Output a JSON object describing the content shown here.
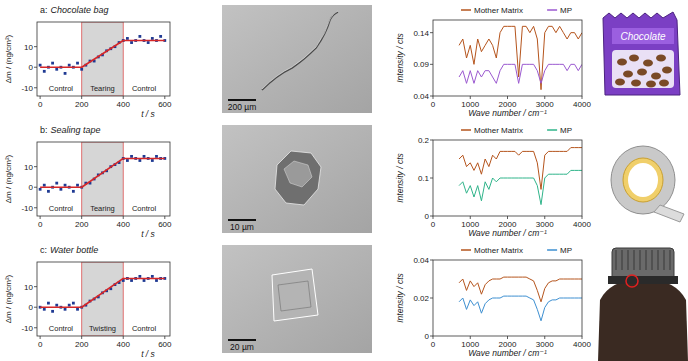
{
  "chart_data": [
    {
      "type": "scatter",
      "panel": "a:",
      "title": "Chocolate bag",
      "xlabel": "t / s",
      "ylabel": "Δm / (ng/cm²)",
      "x": [
        0,
        20,
        40,
        60,
        80,
        100,
        120,
        140,
        160,
        180,
        200,
        220,
        240,
        260,
        280,
        300,
        320,
        340,
        360,
        380,
        400,
        420,
        440,
        460,
        480,
        500,
        520,
        540,
        560,
        580,
        600
      ],
      "xlim": [
        -15,
        625
      ],
      "xticks": [
        0,
        200,
        400,
        600
      ],
      "ylim": [
        -14,
        22
      ],
      "yticks": [
        -10,
        0,
        10
      ],
      "series": [
        {
          "type": "scatter",
          "color": "#1f3a93",
          "marker": "square",
          "values": [
            1,
            -2,
            0,
            2,
            -1,
            0,
            -3,
            1,
            0,
            2,
            -1,
            1,
            3,
            3,
            5,
            6,
            8,
            9,
            10,
            12,
            13,
            14,
            12,
            13,
            15,
            13,
            12,
            14,
            13,
            15,
            13
          ]
        },
        {
          "type": "line",
          "color": "#d62728",
          "x": [
            0,
            200,
            400,
            600
          ],
          "values": [
            0,
            0,
            13,
            13
          ]
        }
      ],
      "highlight": [
        200,
        400
      ],
      "phases": [
        {
          "label": "Control",
          "start": 0,
          "end": 200
        },
        {
          "label": "Tearing",
          "start": 200,
          "end": 400
        },
        {
          "label": "Control",
          "start": 400,
          "end": 600
        }
      ]
    },
    {
      "type": "line",
      "xlabel": "Wave number / cm⁻¹",
      "ylabel": "Intensity / cts",
      "x": [
        700,
        800,
        900,
        1000,
        1100,
        1200,
        1300,
        1400,
        1500,
        1600,
        1700,
        1800,
        1900,
        2000,
        2100,
        2200,
        2300,
        2400,
        2500,
        2600,
        2700,
        2800,
        2900,
        3000,
        3100,
        3200,
        3300,
        3400,
        3500,
        3600,
        3700,
        3800,
        3900,
        4000
      ],
      "xlim": [
        0,
        4000
      ],
      "xticks": [
        0,
        1000,
        2000,
        3000,
        4000
      ],
      "ylim": [
        0.04,
        0.16
      ],
      "yticks": [
        0.04,
        0.09,
        0.14
      ],
      "legend": "top",
      "series": [
        {
          "name": "Mother Matrix",
          "color": "#b5541c",
          "values": [
            0.12,
            0.13,
            0.1,
            0.12,
            0.09,
            0.13,
            0.11,
            0.12,
            0.13,
            0.12,
            0.1,
            0.14,
            0.15,
            0.15,
            0.15,
            0.15,
            0.07,
            0.15,
            0.15,
            0.14,
            0.15,
            0.13,
            0.05,
            0.14,
            0.15,
            0.15,
            0.14,
            0.15,
            0.14,
            0.13,
            0.14,
            0.14,
            0.13,
            0.14
          ]
        },
        {
          "name": "MP",
          "color": "#9b59d0",
          "values": [
            0.07,
            0.08,
            0.06,
            0.08,
            0.06,
            0.08,
            0.07,
            0.08,
            0.08,
            0.07,
            0.06,
            0.08,
            0.09,
            0.09,
            0.09,
            0.09,
            0.06,
            0.09,
            0.09,
            0.09,
            0.09,
            0.08,
            0.06,
            0.08,
            0.09,
            0.09,
            0.09,
            0.09,
            0.09,
            0.08,
            0.09,
            0.09,
            0.08,
            0.09
          ]
        }
      ]
    },
    {
      "type": "scatter",
      "panel": "b:",
      "title": "Sealing tape",
      "xlabel": "t / s",
      "ylabel": "Δm / (ng/cm²)",
      "x": [
        0,
        20,
        40,
        60,
        80,
        100,
        120,
        140,
        160,
        180,
        200,
        220,
        240,
        260,
        280,
        300,
        320,
        340,
        360,
        380,
        400,
        420,
        440,
        460,
        480,
        500,
        520,
        540,
        560,
        580,
        600
      ],
      "xlim": [
        -15,
        625
      ],
      "xticks": [
        0,
        200,
        400,
        600
      ],
      "ylim": [
        -14,
        22
      ],
      "yticks": [
        -10,
        0,
        10
      ],
      "series": [
        {
          "type": "scatter",
          "color": "#1f3a93",
          "marker": "square",
          "values": [
            -1,
            1,
            -2,
            0,
            2,
            -1,
            1,
            0,
            -2,
            1,
            0,
            2,
            2,
            4,
            6,
            7,
            8,
            10,
            11,
            12,
            14,
            13,
            15,
            14,
            13,
            15,
            14,
            13,
            15,
            14,
            14
          ]
        },
        {
          "type": "line",
          "color": "#d62728",
          "x": [
            0,
            200,
            400,
            600
          ],
          "values": [
            0,
            0,
            14,
            14
          ]
        }
      ],
      "highlight": [
        200,
        400
      ],
      "phases": [
        {
          "label": "Control",
          "start": 0,
          "end": 200
        },
        {
          "label": "Tearing",
          "start": 200,
          "end": 400
        },
        {
          "label": "Control",
          "start": 400,
          "end": 600
        }
      ]
    },
    {
      "type": "line",
      "xlabel": "Wave number / cm⁻¹",
      "ylabel": "Intensity / cts",
      "x": [
        700,
        800,
        900,
        1000,
        1100,
        1200,
        1300,
        1400,
        1500,
        1600,
        1700,
        1800,
        1900,
        2000,
        2100,
        2200,
        2300,
        2400,
        2500,
        2600,
        2700,
        2800,
        2900,
        3000,
        3100,
        3200,
        3300,
        3400,
        3500,
        3600,
        3700,
        3800,
        3900,
        4000
      ],
      "xlim": [
        0,
        4000
      ],
      "xticks": [
        0,
        1000,
        2000,
        3000,
        4000
      ],
      "ylim": [
        0,
        0.2
      ],
      "yticks": [
        0,
        0.1,
        0.2
      ],
      "legend": "top",
      "series": [
        {
          "name": "Mother Matrix",
          "color": "#b5541c",
          "values": [
            0.15,
            0.16,
            0.13,
            0.14,
            0.12,
            0.14,
            0.11,
            0.15,
            0.13,
            0.16,
            0.15,
            0.17,
            0.17,
            0.17,
            0.17,
            0.17,
            0.16,
            0.17,
            0.17,
            0.17,
            0.17,
            0.14,
            0.07,
            0.16,
            0.17,
            0.17,
            0.17,
            0.17,
            0.17,
            0.17,
            0.18,
            0.18,
            0.18,
            0.18
          ]
        },
        {
          "name": "MP",
          "color": "#2fb48a",
          "values": [
            0.08,
            0.09,
            0.06,
            0.08,
            0.05,
            0.08,
            0.04,
            0.09,
            0.07,
            0.1,
            0.09,
            0.1,
            0.1,
            0.1,
            0.1,
            0.1,
            0.1,
            0.1,
            0.1,
            0.1,
            0.1,
            0.08,
            0.03,
            0.1,
            0.11,
            0.11,
            0.11,
            0.11,
            0.11,
            0.11,
            0.12,
            0.12,
            0.12,
            0.12
          ]
        }
      ]
    },
    {
      "type": "scatter",
      "panel": "c:",
      "title": "Water bottle",
      "xlabel": "t / s",
      "ylabel": "Δm / (ng/cm²)",
      "x": [
        0,
        20,
        40,
        60,
        80,
        100,
        120,
        140,
        160,
        180,
        200,
        220,
        240,
        260,
        280,
        300,
        320,
        340,
        360,
        380,
        400,
        420,
        440,
        460,
        480,
        500,
        520,
        540,
        560,
        580,
        600
      ],
      "xlim": [
        -15,
        625
      ],
      "xticks": [
        0,
        200,
        400,
        600
      ],
      "ylim": [
        -14,
        22
      ],
      "yticks": [
        -10,
        0,
        10
      ],
      "series": [
        {
          "type": "scatter",
          "color": "#1f3a93",
          "marker": "square",
          "values": [
            0,
            -1,
            2,
            -2,
            1,
            0,
            -1,
            1,
            2,
            -1,
            0,
            1,
            3,
            4,
            5,
            7,
            8,
            9,
            11,
            12,
            13,
            14,
            13,
            14,
            15,
            13,
            14,
            15,
            13,
            14,
            14
          ]
        },
        {
          "type": "line",
          "color": "#d62728",
          "x": [
            0,
            200,
            400,
            600
          ],
          "values": [
            0,
            0,
            14,
            14
          ]
        }
      ],
      "highlight": [
        200,
        400
      ],
      "phases": [
        {
          "label": "Control",
          "start": 0,
          "end": 200
        },
        {
          "label": "Twisting",
          "start": 200,
          "end": 400
        },
        {
          "label": "Control",
          "start": 400,
          "end": 600
        }
      ]
    },
    {
      "type": "line",
      "xlabel": "Wave number / cm⁻¹",
      "ylabel": "Intensity / cts",
      "x": [
        700,
        800,
        900,
        1000,
        1100,
        1200,
        1300,
        1400,
        1500,
        1600,
        1700,
        1800,
        1900,
        2000,
        2100,
        2200,
        2300,
        2400,
        2500,
        2600,
        2700,
        2800,
        2900,
        3000,
        3100,
        3200,
        3300,
        3400,
        3500,
        3600,
        3700,
        3800,
        3900,
        4000
      ],
      "xlim": [
        0,
        4000
      ],
      "xticks": [
        0,
        1000,
        2000,
        3000,
        4000
      ],
      "ylim": [
        0,
        0.04
      ],
      "yticks": [
        0,
        0.02,
        0.04
      ],
      "legend": "top",
      "series": [
        {
          "name": "Mother Matrix",
          "color": "#b5541c",
          "values": [
            0.028,
            0.03,
            0.024,
            0.029,
            0.026,
            0.028,
            0.022,
            0.027,
            0.029,
            0.03,
            0.03,
            0.03,
            0.031,
            0.031,
            0.031,
            0.031,
            0.031,
            0.031,
            0.031,
            0.03,
            0.029,
            0.024,
            0.018,
            0.025,
            0.028,
            0.029,
            0.029,
            0.03,
            0.03,
            0.03,
            0.03,
            0.03,
            0.03,
            0.03
          ]
        },
        {
          "name": "MP",
          "color": "#3d8fd1",
          "values": [
            0.018,
            0.02,
            0.014,
            0.019,
            0.016,
            0.018,
            0.012,
            0.017,
            0.019,
            0.02,
            0.02,
            0.02,
            0.021,
            0.021,
            0.021,
            0.021,
            0.021,
            0.021,
            0.021,
            0.02,
            0.019,
            0.014,
            0.008,
            0.015,
            0.018,
            0.019,
            0.019,
            0.02,
            0.02,
            0.02,
            0.02,
            0.02,
            0.02,
            0.02
          ]
        }
      ]
    }
  ],
  "panels": [
    {
      "sem_scale_bar": "200 µm",
      "product_text": "Chocolate"
    },
    {
      "sem_scale_bar": "10 µm"
    },
    {
      "sem_scale_bar": "20 µm"
    }
  ]
}
